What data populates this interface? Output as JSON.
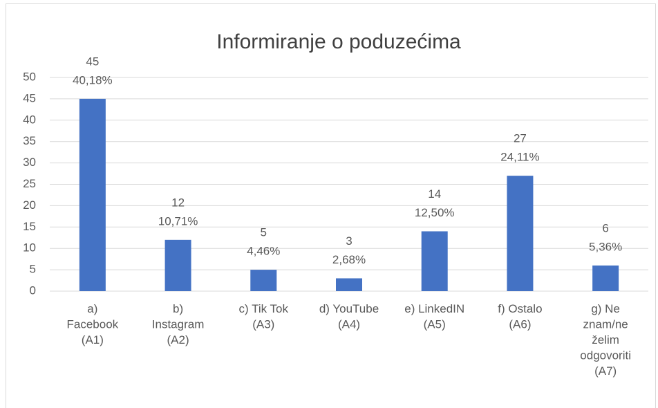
{
  "chart_data": {
    "type": "bar",
    "title": "Informiranje o poduzećima",
    "categories": [
      "a)\nFacebook\n(A1)",
      "b)\nInstagram\n(A2)",
      "c)  Tik Tok\n(A3)",
      "d)  YouTube\n(A4)",
      "e)  LinkedIN\n(A5)",
      "f)  Ostalo\n(A6)",
      "g)  Ne\nznam/ne\nželim\nodgovoriti\n(A7)"
    ],
    "values": [
      45,
      12,
      5,
      3,
      14,
      27,
      6
    ],
    "percent_labels": [
      "40,18%",
      "10,71%",
      "4,46%",
      "2,68%",
      "12,50%",
      "24,11%",
      "5,36%"
    ],
    "color": "#4472c4",
    "ylim": [
      0,
      50
    ],
    "yticks": [
      0,
      5,
      10,
      15,
      20,
      25,
      30,
      35,
      40,
      45,
      50
    ],
    "grid": true
  }
}
